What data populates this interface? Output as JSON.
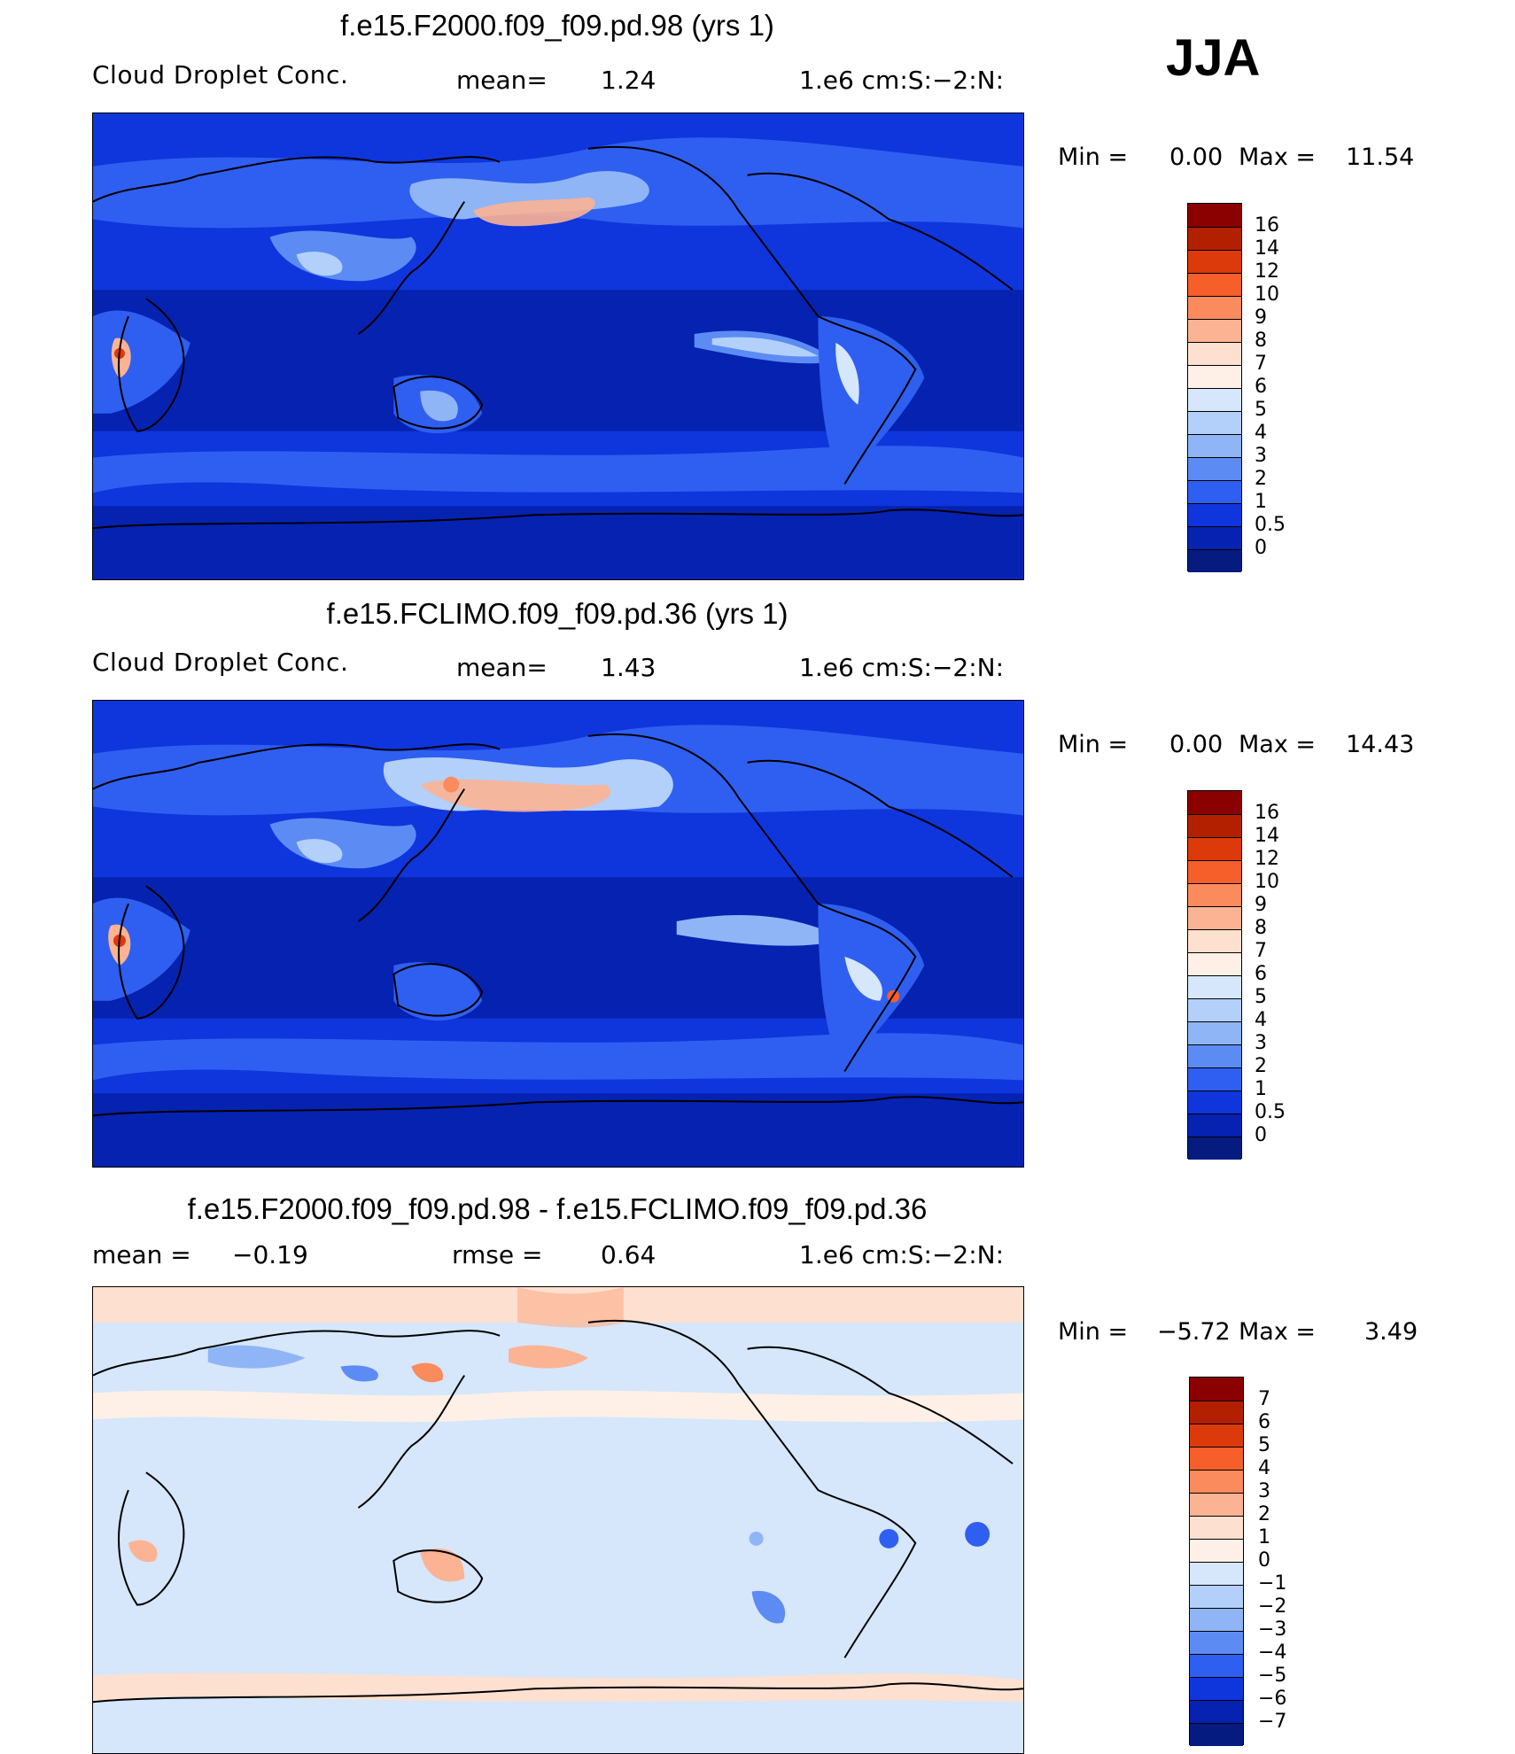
{
  "season": "JJA",
  "units": "1.e6 cm:S:−2:N:",
  "panels": [
    {
      "title": "f.e15.F2000.f09_f09.pd.98 (yrs 1)",
      "variable": "Cloud Droplet Conc.",
      "stat_label": "mean=",
      "stat_value": "1.24",
      "min_label": "Min =",
      "min_value": "0.00",
      "max_label": "Max =",
      "max_value": "11.54"
    },
    {
      "title": "f.e15.FCLIMO.f09_f09.pd.36 (yrs 1)",
      "variable": "Cloud Droplet Conc.",
      "stat_label": "mean=",
      "stat_value": "1.43",
      "min_label": "Min =",
      "min_value": "0.00",
      "max_label": "Max =",
      "max_value": "14.43"
    },
    {
      "title": "f.e15.F2000.f09_f09.pd.98 - f.e15.FCLIMO.f09_f09.pd.36",
      "stat_label": "mean =",
      "stat_value": "−0.19",
      "stat2_label": "rmse =",
      "stat2_value": "0.64",
      "min_label": "Min =",
      "min_value": "−5.72",
      "max_label": "Max =",
      "max_value": "3.49"
    }
  ],
  "colorbars": {
    "abs": {
      "labels": [
        "16",
        "14",
        "12",
        "10",
        "9",
        "8",
        "7",
        "6",
        "5",
        "4",
        "3",
        "2",
        "1",
        "0.5",
        "0"
      ],
      "colors": [
        "#8b0000",
        "#b22000",
        "#dc3a0a",
        "#f65e2a",
        "#fb8a5c",
        "#fcb393",
        "#fde0cf",
        "#fef0e6",
        "#d6e6fb",
        "#b2d0fa",
        "#8fb5f6",
        "#5c8cf3",
        "#2f5ff0",
        "#0f35dc",
        "#0522b0",
        "#061b80"
      ]
    },
    "diff": {
      "labels": [
        "7",
        "6",
        "5",
        "4",
        "3",
        "2",
        "1",
        "0",
        "−1",
        "−2",
        "−3",
        "−4",
        "−5",
        "−6",
        "−7"
      ],
      "colors": [
        "#8b0000",
        "#b22000",
        "#dc3a0a",
        "#f65e2a",
        "#fb8a5c",
        "#fcb393",
        "#fde0cf",
        "#fef0e6",
        "#d6e6fb",
        "#b2d0fa",
        "#8fb5f6",
        "#5c8cf3",
        "#2f5ff0",
        "#0f35dc",
        "#0522b0",
        "#061b80"
      ]
    }
  }
}
